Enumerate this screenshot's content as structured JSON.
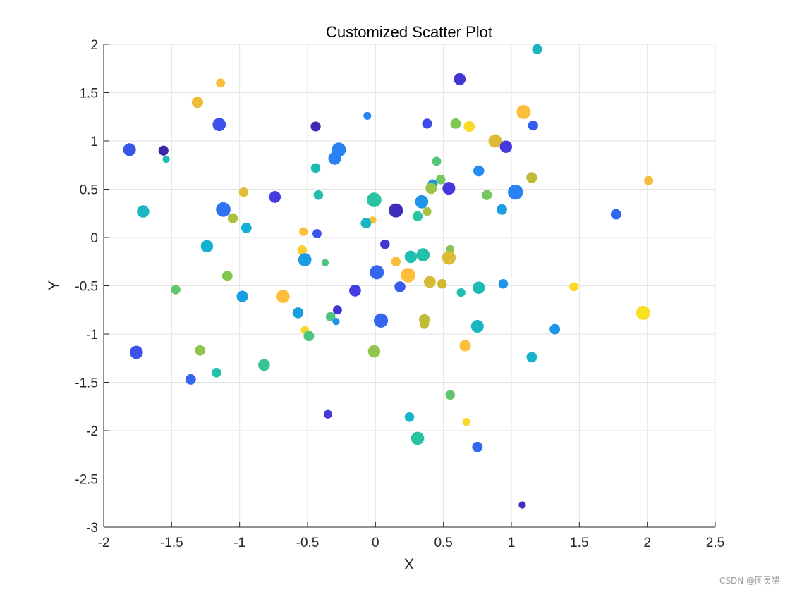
{
  "chart_data": {
    "type": "scatter",
    "title": "Customized Scatter Plot",
    "xlabel": "X",
    "ylabel": "Y",
    "xlim": [
      -2,
      2.5
    ],
    "ylim": [
      -3,
      2
    ],
    "xticks": [
      -2,
      -1.5,
      -1,
      -0.5,
      0,
      0.5,
      1,
      1.5,
      2,
      2.5
    ],
    "yticks": [
      -3,
      -2.5,
      -2,
      -1.5,
      -1,
      -0.5,
      0,
      0.5,
      1,
      1.5,
      2
    ],
    "xtick_labels": [
      "-2",
      "-1.5",
      "-1",
      "-0.5",
      "0",
      "0.5",
      "1",
      "1.5",
      "2",
      "2.5"
    ],
    "ytick_labels": [
      "-3",
      "-2.5",
      "-2",
      "-1.5",
      "-1",
      "-0.5",
      "0",
      "0.5",
      "1",
      "1.5",
      "2"
    ],
    "grid": true,
    "colormap": "parula",
    "points": [
      {
        "x": 1.19,
        "y": 1.95,
        "size": 0.4,
        "c": 0.42
      },
      {
        "x": 0.62,
        "y": 1.64,
        "size": 0.6,
        "c": 0.08
      },
      {
        "x": -1.14,
        "y": 1.6,
        "size": 0.3,
        "c": 0.85
      },
      {
        "x": -1.31,
        "y": 1.4,
        "size": 0.55,
        "c": 0.82
      },
      {
        "x": -0.06,
        "y": 1.26,
        "size": 0.15,
        "c": 0.25
      },
      {
        "x": 1.09,
        "y": 1.3,
        "size": 0.85,
        "c": 0.86
      },
      {
        "x": -1.15,
        "y": 1.17,
        "size": 0.75,
        "c": 0.16
      },
      {
        "x": -0.44,
        "y": 1.15,
        "size": 0.4,
        "c": 0.02
      },
      {
        "x": 0.38,
        "y": 1.18,
        "size": 0.4,
        "c": 0.15
      },
      {
        "x": 0.59,
        "y": 1.18,
        "size": 0.45,
        "c": 0.62
      },
      {
        "x": 0.69,
        "y": 1.15,
        "size": 0.5,
        "c": 0.96
      },
      {
        "x": 1.16,
        "y": 1.16,
        "size": 0.4,
        "c": 0.18
      },
      {
        "x": -1.81,
        "y": 0.91,
        "size": 0.7,
        "c": 0.17
      },
      {
        "x": -1.56,
        "y": 0.9,
        "size": 0.4,
        "c": 0.0
      },
      {
        "x": -1.54,
        "y": 0.81,
        "size": 0.1,
        "c": 0.45
      },
      {
        "x": -0.27,
        "y": 0.91,
        "size": 0.85,
        "c": 0.25
      },
      {
        "x": -0.3,
        "y": 0.82,
        "size": 0.7,
        "c": 0.25
      },
      {
        "x": 0.88,
        "y": 1.0,
        "size": 0.75,
        "c": 0.78
      },
      {
        "x": 0.96,
        "y": 0.94,
        "size": 0.65,
        "c": 0.1
      },
      {
        "x": 0.45,
        "y": 0.79,
        "size": 0.3,
        "c": 0.56
      },
      {
        "x": -0.44,
        "y": 0.72,
        "size": 0.35,
        "c": 0.45
      },
      {
        "x": 0.76,
        "y": 0.69,
        "size": 0.5,
        "c": 0.28
      },
      {
        "x": 0.48,
        "y": 0.6,
        "size": 0.35,
        "c": 0.6
      },
      {
        "x": 1.15,
        "y": 0.62,
        "size": 0.5,
        "c": 0.72
      },
      {
        "x": 2.01,
        "y": 0.59,
        "size": 0.3,
        "c": 0.84
      },
      {
        "x": 0.42,
        "y": 0.55,
        "size": 0.4,
        "c": 0.3
      },
      {
        "x": 0.41,
        "y": 0.51,
        "size": 0.55,
        "c": 0.66
      },
      {
        "x": 0.54,
        "y": 0.51,
        "size": 0.7,
        "c": 0.1
      },
      {
        "x": 1.03,
        "y": 0.47,
        "size": 0.95,
        "c": 0.25
      },
      {
        "x": -0.97,
        "y": 0.47,
        "size": 0.35,
        "c": 0.8
      },
      {
        "x": -0.42,
        "y": 0.44,
        "size": 0.35,
        "c": 0.46
      },
      {
        "x": 0.82,
        "y": 0.44,
        "size": 0.4,
        "c": 0.6
      },
      {
        "x": -0.74,
        "y": 0.42,
        "size": 0.6,
        "c": 0.12
      },
      {
        "x": -0.01,
        "y": 0.39,
        "size": 0.9,
        "c": 0.5
      },
      {
        "x": 0.34,
        "y": 0.37,
        "size": 0.75,
        "c": 0.3
      },
      {
        "x": 0.93,
        "y": 0.29,
        "size": 0.45,
        "c": 0.33
      },
      {
        "x": -1.12,
        "y": 0.29,
        "size": 0.9,
        "c": 0.22
      },
      {
        "x": 0.15,
        "y": 0.28,
        "size": 0.85,
        "c": 0.04
      },
      {
        "x": -1.71,
        "y": 0.27,
        "size": 0.65,
        "c": 0.42
      },
      {
        "x": 0.38,
        "y": 0.27,
        "size": 0.25,
        "c": 0.68
      },
      {
        "x": 1.77,
        "y": 0.24,
        "size": 0.45,
        "c": 0.2
      },
      {
        "x": 0.31,
        "y": 0.22,
        "size": 0.4,
        "c": 0.5
      },
      {
        "x": -1.05,
        "y": 0.2,
        "size": 0.4,
        "c": 0.68
      },
      {
        "x": -0.02,
        "y": 0.18,
        "size": 0.1,
        "c": 0.85
      },
      {
        "x": -0.07,
        "y": 0.15,
        "size": 0.45,
        "c": 0.42
      },
      {
        "x": -0.95,
        "y": 0.1,
        "size": 0.45,
        "c": 0.38
      },
      {
        "x": -0.53,
        "y": 0.06,
        "size": 0.25,
        "c": 0.86
      },
      {
        "x": -0.43,
        "y": 0.04,
        "size": 0.3,
        "c": 0.16
      },
      {
        "x": 0.07,
        "y": -0.07,
        "size": 0.35,
        "c": 0.08
      },
      {
        "x": -1.24,
        "y": -0.09,
        "size": 0.65,
        "c": 0.38
      },
      {
        "x": 0.55,
        "y": -0.12,
        "size": 0.2,
        "c": 0.62
      },
      {
        "x": -0.54,
        "y": -0.13,
        "size": 0.35,
        "c": 0.92
      },
      {
        "x": 0.35,
        "y": -0.18,
        "size": 0.75,
        "c": 0.48
      },
      {
        "x": 0.26,
        "y": -0.2,
        "size": 0.65,
        "c": 0.46
      },
      {
        "x": 0.54,
        "y": -0.21,
        "size": 0.8,
        "c": 0.78
      },
      {
        "x": -0.52,
        "y": -0.23,
        "size": 0.75,
        "c": 0.32
      },
      {
        "x": -0.37,
        "y": -0.26,
        "size": 0.1,
        "c": 0.55
      },
      {
        "x": 0.15,
        "y": -0.25,
        "size": 0.35,
        "c": 0.84
      },
      {
        "x": 0.01,
        "y": -0.36,
        "size": 0.85,
        "c": 0.2
      },
      {
        "x": 0.24,
        "y": -0.39,
        "size": 0.9,
        "c": 0.86
      },
      {
        "x": -1.09,
        "y": -0.4,
        "size": 0.45,
        "c": 0.62
      },
      {
        "x": 0.4,
        "y": -0.46,
        "size": 0.6,
        "c": 0.76
      },
      {
        "x": 0.49,
        "y": -0.48,
        "size": 0.35,
        "c": 0.74
      },
      {
        "x": 0.94,
        "y": -0.48,
        "size": 0.35,
        "c": 0.3
      },
      {
        "x": 1.46,
        "y": -0.51,
        "size": 0.3,
        "c": 0.96
      },
      {
        "x": 0.76,
        "y": -0.52,
        "size": 0.65,
        "c": 0.45
      },
      {
        "x": 0.18,
        "y": -0.51,
        "size": 0.5,
        "c": 0.18
      },
      {
        "x": -1.47,
        "y": -0.54,
        "size": 0.35,
        "c": 0.58
      },
      {
        "x": -0.15,
        "y": -0.55,
        "size": 0.6,
        "c": 0.12
      },
      {
        "x": 0.63,
        "y": -0.57,
        "size": 0.25,
        "c": 0.46
      },
      {
        "x": -0.98,
        "y": -0.61,
        "size": 0.55,
        "c": 0.33
      },
      {
        "x": -0.68,
        "y": -0.61,
        "size": 0.75,
        "c": 0.86
      },
      {
        "x": -0.28,
        "y": -0.75,
        "size": 0.3,
        "c": 0.08
      },
      {
        "x": -0.57,
        "y": -0.78,
        "size": 0.5,
        "c": 0.33
      },
      {
        "x": 1.97,
        "y": -0.78,
        "size": 0.85,
        "c": 0.98
      },
      {
        "x": -0.33,
        "y": -0.82,
        "size": 0.35,
        "c": 0.55
      },
      {
        "x": 0.36,
        "y": -0.85,
        "size": 0.5,
        "c": 0.72
      },
      {
        "x": 0.04,
        "y": -0.86,
        "size": 0.85,
        "c": 0.2
      },
      {
        "x": -0.29,
        "y": -0.87,
        "size": 0.1,
        "c": 0.3
      },
      {
        "x": 0.36,
        "y": -0.9,
        "size": 0.3,
        "c": 0.72
      },
      {
        "x": 0.75,
        "y": -0.92,
        "size": 0.7,
        "c": 0.42
      },
      {
        "x": 1.32,
        "y": -0.95,
        "size": 0.45,
        "c": 0.3
      },
      {
        "x": -0.52,
        "y": -0.96,
        "size": 0.2,
        "c": 0.95
      },
      {
        "x": -0.49,
        "y": -1.02,
        "size": 0.45,
        "c": 0.55
      },
      {
        "x": 0.66,
        "y": -1.12,
        "size": 0.55,
        "c": 0.86
      },
      {
        "x": -1.29,
        "y": -1.17,
        "size": 0.45,
        "c": 0.64
      },
      {
        "x": -0.01,
        "y": -1.18,
        "size": 0.65,
        "c": 0.64
      },
      {
        "x": -1.76,
        "y": -1.19,
        "size": 0.75,
        "c": 0.16
      },
      {
        "x": 1.15,
        "y": -1.24,
        "size": 0.45,
        "c": 0.4
      },
      {
        "x": -0.82,
        "y": -1.32,
        "size": 0.6,
        "c": 0.52
      },
      {
        "x": -1.17,
        "y": -1.4,
        "size": 0.35,
        "c": 0.48
      },
      {
        "x": -1.36,
        "y": -1.47,
        "size": 0.45,
        "c": 0.2
      },
      {
        "x": 0.55,
        "y": -1.63,
        "size": 0.35,
        "c": 0.58
      },
      {
        "x": -0.35,
        "y": -1.83,
        "size": 0.25,
        "c": 0.1
      },
      {
        "x": 0.25,
        "y": -1.86,
        "size": 0.35,
        "c": 0.4
      },
      {
        "x": 0.67,
        "y": -1.91,
        "size": 0.2,
        "c": 0.95
      },
      {
        "x": 0.31,
        "y": -2.08,
        "size": 0.75,
        "c": 0.5
      },
      {
        "x": 0.75,
        "y": -2.17,
        "size": 0.45,
        "c": 0.2
      },
      {
        "x": 1.08,
        "y": -2.77,
        "size": 0.1,
        "c": 0.05
      }
    ]
  },
  "footer": {
    "watermark": "CSDN @图灵猫"
  }
}
